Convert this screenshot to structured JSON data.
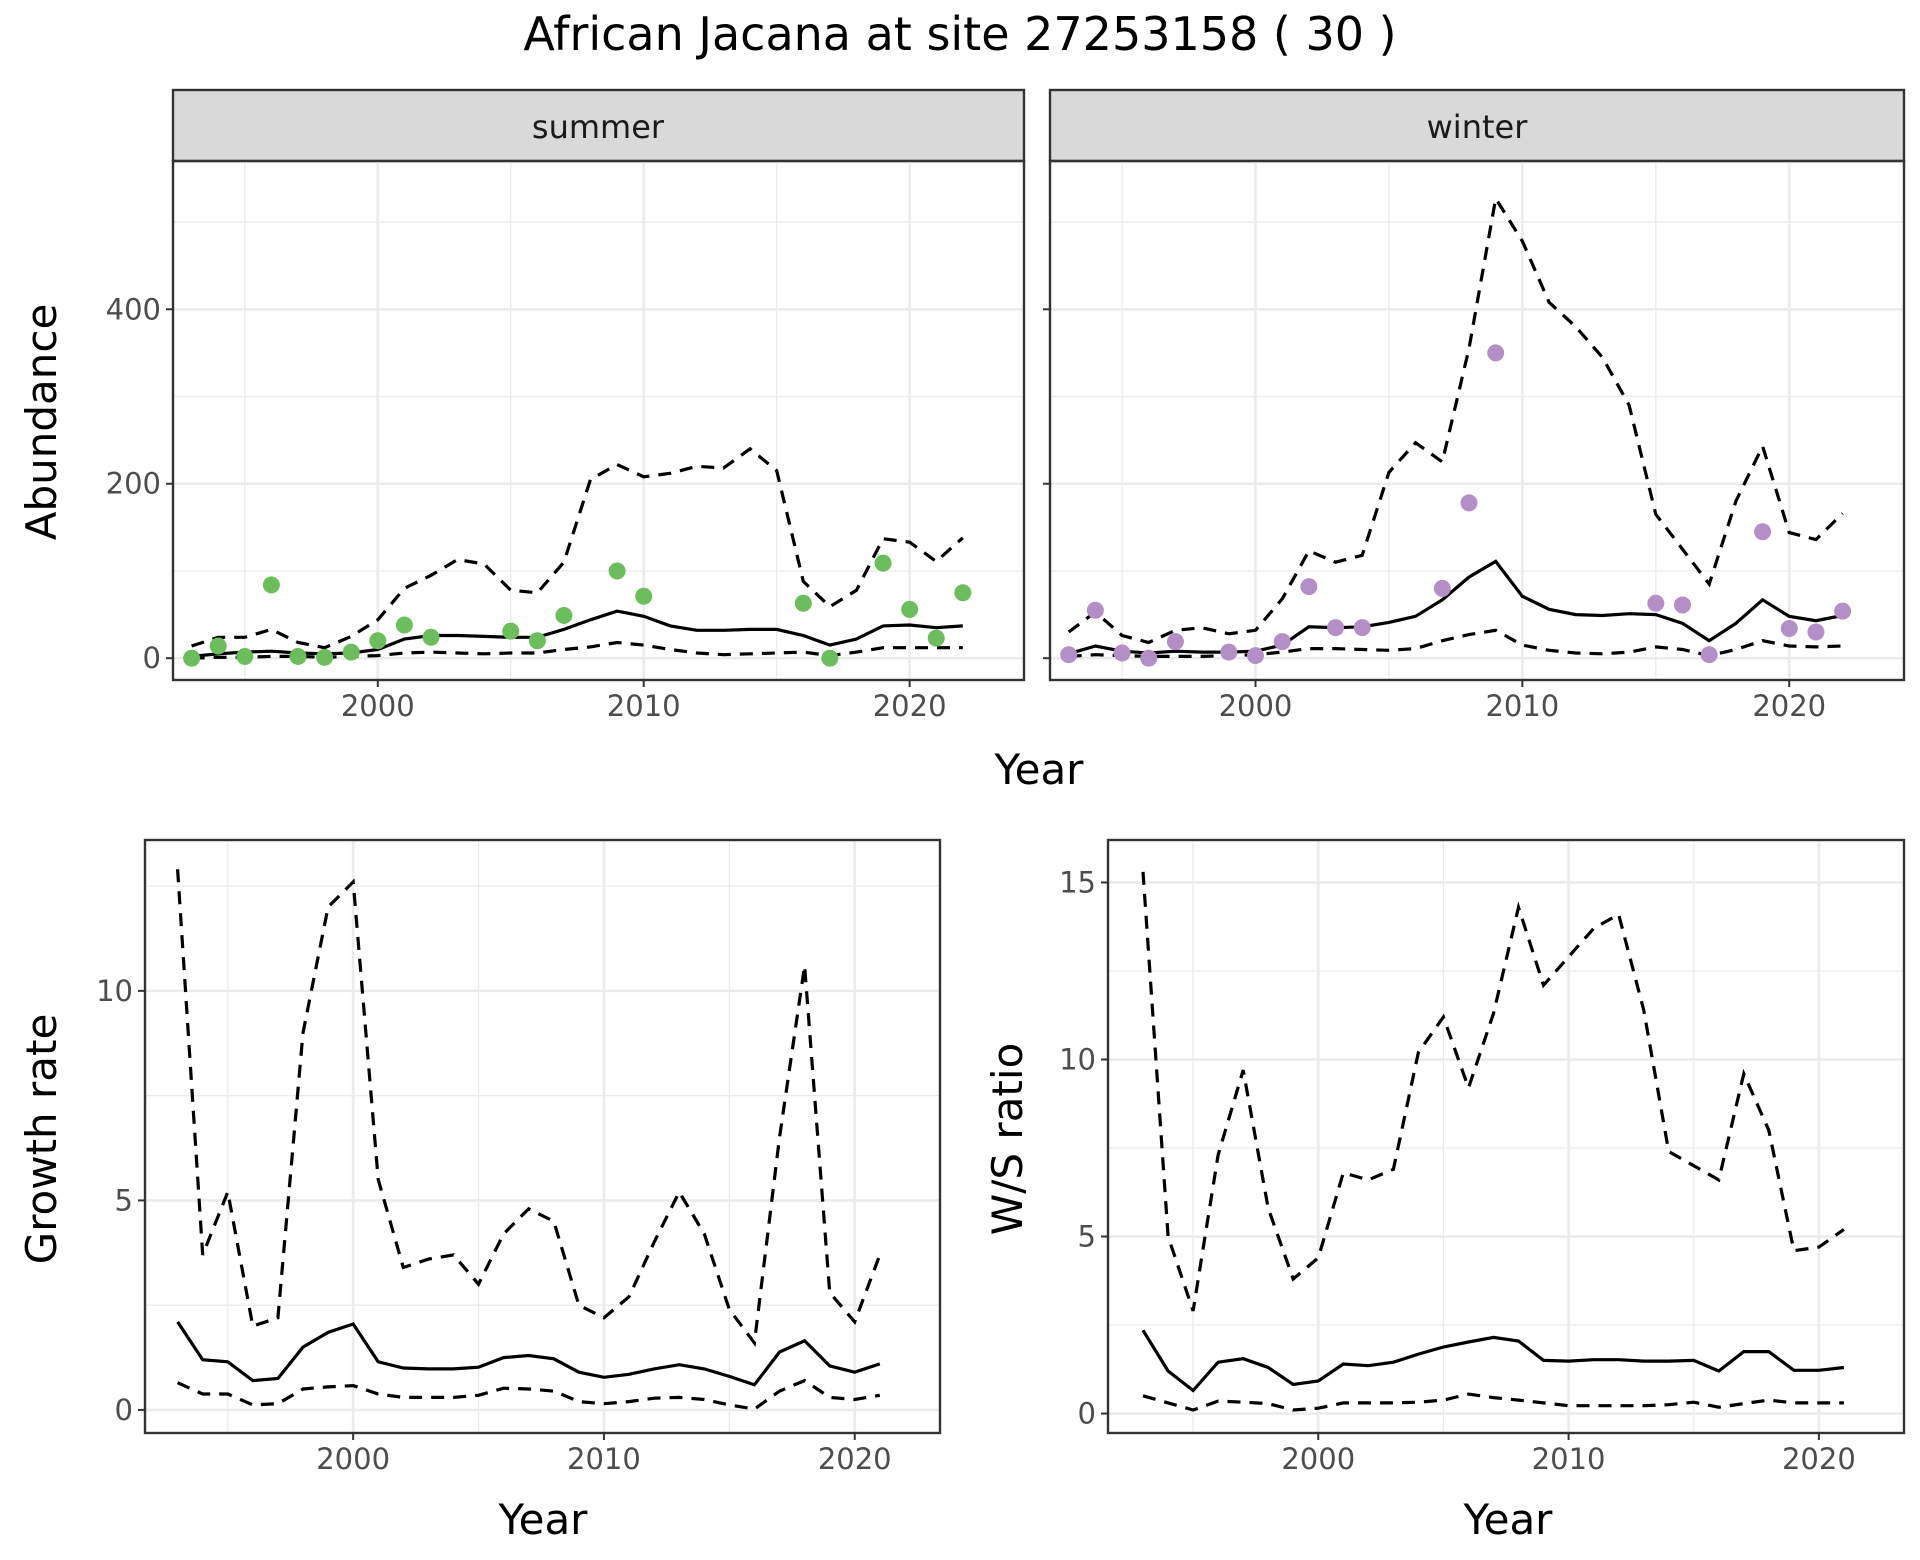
{
  "figure": {
    "title": "African Jacana at site 27253158 ( 30 )"
  },
  "chart_data": [
    {
      "type": "line",
      "facet": "summer",
      "xlabel": "Year",
      "ylabel": "Abundance",
      "xlim": [
        1992.3,
        2024.3
      ],
      "ylim": [
        -25,
        570
      ],
      "xticks": [
        2000,
        2010,
        2020
      ],
      "yticks": [
        0,
        200,
        400
      ],
      "point_color": "#6cbd5c",
      "grid": true,
      "x": [
        1993,
        1994,
        1995,
        1996,
        1997,
        1998,
        1999,
        2000,
        2001,
        2002,
        2003,
        2004,
        2005,
        2006,
        2007,
        2008,
        2009,
        2010,
        2011,
        2012,
        2013,
        2014,
        2015,
        2016,
        2017,
        2018,
        2019,
        2020,
        2021,
        2022
      ],
      "series": [
        {
          "role": "mean",
          "values": [
            2,
            5,
            7,
            8,
            6,
            5,
            6,
            10,
            22,
            26,
            26,
            25,
            24,
            24,
            33,
            44,
            54,
            48,
            37,
            32,
            32,
            33,
            33,
            26,
            15,
            22,
            37,
            38,
            35,
            37
          ]
        },
        {
          "role": "upper",
          "values": [
            14,
            24,
            24,
            33,
            18,
            12,
            25,
            44,
            80,
            95,
            113,
            108,
            78,
            75,
            110,
            205,
            222,
            208,
            212,
            220,
            218,
            240,
            215,
            88,
            59,
            78,
            137,
            133,
            111,
            138
          ]
        },
        {
          "role": "lower",
          "values": [
            0,
            1,
            1,
            2,
            2,
            1,
            2,
            3,
            6,
            7,
            6,
            5,
            6,
            6,
            10,
            13,
            18,
            15,
            10,
            6,
            4,
            5,
            6,
            7,
            3,
            7,
            12,
            12,
            12,
            12
          ]
        },
        {
          "role": "observed",
          "x": [
            1993,
            1994,
            1995,
            1996,
            1997,
            1998,
            1999,
            2000,
            2001,
            2002,
            2005,
            2006,
            2007,
            2009,
            2010,
            2016,
            2017,
            2019,
            2020,
            2021,
            2022
          ],
          "values": [
            0,
            14,
            2,
            84,
            2,
            1,
            7,
            20,
            38,
            24,
            31,
            20,
            49,
            100,
            71,
            63,
            0,
            109,
            56,
            23,
            75
          ]
        }
      ]
    },
    {
      "type": "line",
      "facet": "winter",
      "xlabel": "Year",
      "ylabel": "",
      "xlim": [
        1992.3,
        2024.3
      ],
      "ylim": [
        -25,
        570
      ],
      "xticks": [
        2000,
        2010,
        2020
      ],
      "yticks": [
        0,
        200,
        400
      ],
      "point_color": "#b48ec7",
      "grid": true,
      "x": [
        1993,
        1994,
        1995,
        1996,
        1997,
        1998,
        1999,
        2000,
        2001,
        2002,
        2003,
        2004,
        2005,
        2006,
        2007,
        2008,
        2009,
        2010,
        2011,
        2012,
        2013,
        2014,
        2015,
        2016,
        2017,
        2018,
        2019,
        2020,
        2021,
        2022
      ],
      "series": [
        {
          "role": "mean",
          "values": [
            5,
            14,
            8,
            6,
            8,
            7,
            7,
            8,
            15,
            36,
            35,
            36,
            41,
            48,
            67,
            93,
            111,
            71,
            56,
            50,
            49,
            51,
            50,
            40,
            20,
            40,
            67,
            48,
            43,
            49
          ]
        },
        {
          "role": "upper",
          "values": [
            30,
            53,
            26,
            18,
            32,
            35,
            28,
            32,
            68,
            123,
            110,
            118,
            213,
            247,
            225,
            355,
            527,
            478,
            408,
            380,
            345,
            290,
            165,
            125,
            85,
            180,
            243,
            144,
            136,
            166
          ]
        },
        {
          "role": "lower",
          "values": [
            2,
            4,
            3,
            2,
            2,
            2,
            3,
            4,
            7,
            11,
            11,
            10,
            9,
            11,
            20,
            27,
            32,
            15,
            9,
            6,
            5,
            7,
            13,
            10,
            3,
            10,
            20,
            14,
            13,
            14
          ]
        },
        {
          "role": "observed",
          "x": [
            1993,
            1994,
            1995,
            1996,
            1997,
            1999,
            2000,
            2001,
            2002,
            2003,
            2004,
            2007,
            2008,
            2009,
            2015,
            2016,
            2017,
            2019,
            2020,
            2021,
            2022
          ],
          "values": [
            4,
            55,
            6,
            0,
            19,
            7,
            3,
            19,
            82,
            35,
            35,
            80,
            178,
            350,
            63,
            61,
            4,
            145,
            34,
            30,
            54
          ]
        }
      ]
    },
    {
      "type": "line",
      "xlabel": "Year",
      "ylabel": "Growth rate",
      "xlim": [
        1991.7,
        2023.4
      ],
      "ylim": [
        -0.55,
        13.6
      ],
      "xticks": [
        2000,
        2010,
        2020
      ],
      "yticks": [
        0,
        5,
        10
      ],
      "grid": true,
      "x": [
        1993,
        1994,
        1995,
        1996,
        1997,
        1998,
        1999,
        2000,
        2001,
        2002,
        2003,
        2004,
        2005,
        2006,
        2007,
        2008,
        2009,
        2010,
        2011,
        2012,
        2013,
        2014,
        2015,
        2016,
        2017,
        2018,
        2019,
        2020,
        2021
      ],
      "series": [
        {
          "role": "mean",
          "values": [
            2.1,
            1.2,
            1.15,
            0.7,
            0.75,
            1.5,
            1.85,
            2.05,
            1.15,
            1.0,
            0.98,
            0.98,
            1.02,
            1.25,
            1.3,
            1.22,
            0.9,
            0.78,
            0.85,
            0.98,
            1.08,
            0.98,
            0.8,
            0.6,
            1.38,
            1.65,
            1.05,
            0.9,
            1.1
          ]
        },
        {
          "role": "upper",
          "values": [
            12.9,
            3.7,
            5.2,
            2.0,
            2.2,
            9.0,
            12.0,
            12.6,
            5.5,
            3.4,
            3.6,
            3.7,
            3.0,
            4.2,
            4.8,
            4.5,
            2.5,
            2.2,
            2.7,
            4.0,
            5.2,
            4.2,
            2.4,
            1.6,
            6.5,
            10.6,
            2.8,
            2.1,
            3.7
          ]
        },
        {
          "role": "lower",
          "values": [
            0.65,
            0.38,
            0.38,
            0.12,
            0.15,
            0.5,
            0.55,
            0.58,
            0.38,
            0.3,
            0.3,
            0.3,
            0.35,
            0.52,
            0.5,
            0.45,
            0.2,
            0.15,
            0.2,
            0.28,
            0.3,
            0.25,
            0.12,
            0.02,
            0.45,
            0.7,
            0.3,
            0.25,
            0.35
          ]
        }
      ]
    },
    {
      "type": "line",
      "xlabel": "Year",
      "ylabel": "W/S ratio",
      "xlim": [
        1991.6,
        2023.4
      ],
      "ylim": [
        -0.55,
        16.2
      ],
      "xticks": [
        2000,
        2010,
        2020
      ],
      "yticks": [
        0,
        5,
        10,
        15
      ],
      "grid": true,
      "x": [
        1993,
        1994,
        1995,
        1996,
        1997,
        1998,
        1999,
        2000,
        2001,
        2002,
        2003,
        2004,
        2005,
        2006,
        2007,
        2008,
        2009,
        2010,
        2011,
        2012,
        2013,
        2014,
        2015,
        2016,
        2017,
        2018,
        2019,
        2020,
        2021
      ],
      "series": [
        {
          "role": "mean",
          "values": [
            2.35,
            1.2,
            0.65,
            1.45,
            1.55,
            1.3,
            0.82,
            0.92,
            1.4,
            1.35,
            1.45,
            1.68,
            1.88,
            2.02,
            2.15,
            2.05,
            1.5,
            1.48,
            1.52,
            1.52,
            1.48,
            1.48,
            1.5,
            1.2,
            1.75,
            1.75,
            1.22,
            1.22,
            1.3
          ]
        },
        {
          "role": "upper",
          "values": [
            15.3,
            5.0,
            2.9,
            7.3,
            9.7,
            5.8,
            3.8,
            4.4,
            6.8,
            6.6,
            6.9,
            10.2,
            11.2,
            9.2,
            11.3,
            14.3,
            12.1,
            12.9,
            13.7,
            14.1,
            11.4,
            7.4,
            7.0,
            6.6,
            9.6,
            8.0,
            4.6,
            4.7,
            5.2
          ]
        },
        {
          "role": "lower",
          "values": [
            0.5,
            0.3,
            0.1,
            0.35,
            0.32,
            0.28,
            0.1,
            0.15,
            0.3,
            0.3,
            0.3,
            0.32,
            0.38,
            0.55,
            0.45,
            0.38,
            0.3,
            0.22,
            0.22,
            0.22,
            0.22,
            0.25,
            0.32,
            0.18,
            0.28,
            0.38,
            0.3,
            0.3,
            0.3
          ]
        }
      ]
    }
  ]
}
